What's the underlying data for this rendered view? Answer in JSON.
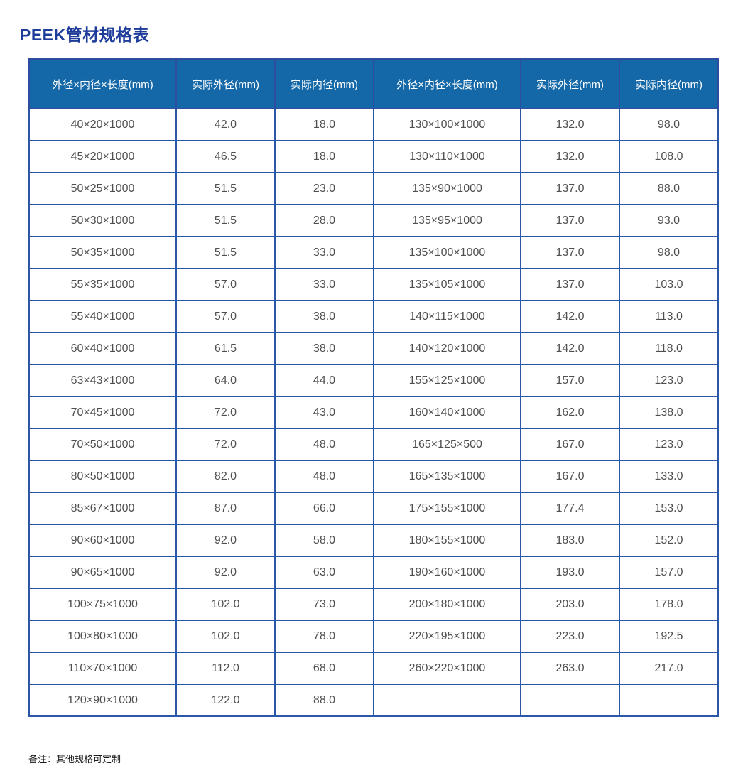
{
  "title": "PEEK管材规格表",
  "note": "备注：其他规格可定制",
  "colors": {
    "title_text": "#1e3c99",
    "header_background": "#1468a8",
    "header_text": "#ffffff",
    "grid_border": "#2b57a8",
    "cell_text": "#4f4f4f"
  },
  "table": {
    "headers": [
      "外径×内径×长度(mm)",
      "实际外径(mm)",
      "实际内径(mm)",
      "外径×内径×长度(mm)",
      "实际外径(mm)",
      "实际内径(mm)"
    ],
    "rows": [
      [
        "40×20×1000",
        "42.0",
        "18.0",
        "130×100×1000",
        "132.0",
        "98.0"
      ],
      [
        "45×20×1000",
        "46.5",
        "18.0",
        "130×110×1000",
        "132.0",
        "108.0"
      ],
      [
        "50×25×1000",
        "51.5",
        "23.0",
        "135×90×1000",
        "137.0",
        "88.0"
      ],
      [
        "50×30×1000",
        "51.5",
        "28.0",
        "135×95×1000",
        "137.0",
        "93.0"
      ],
      [
        "50×35×1000",
        "51.5",
        "33.0",
        "135×100×1000",
        "137.0",
        "98.0"
      ],
      [
        "55×35×1000",
        "57.0",
        "33.0",
        "135×105×1000",
        "137.0",
        "103.0"
      ],
      [
        "55×40×1000",
        "57.0",
        "38.0",
        "140×115×1000",
        "142.0",
        "113.0"
      ],
      [
        "60×40×1000",
        "61.5",
        "38.0",
        "140×120×1000",
        "142.0",
        "118.0"
      ],
      [
        "63×43×1000",
        "64.0",
        "44.0",
        "155×125×1000",
        "157.0",
        "123.0"
      ],
      [
        "70×45×1000",
        "72.0",
        "43.0",
        "160×140×1000",
        "162.0",
        "138.0"
      ],
      [
        "70×50×1000",
        "72.0",
        "48.0",
        "165×125×500",
        "167.0",
        "123.0"
      ],
      [
        "80×50×1000",
        "82.0",
        "48.0",
        "165×135×1000",
        "167.0",
        "133.0"
      ],
      [
        "85×67×1000",
        "87.0",
        "66.0",
        "175×155×1000",
        "177.4",
        "153.0"
      ],
      [
        "90×60×1000",
        "92.0",
        "58.0",
        "180×155×1000",
        "183.0",
        "152.0"
      ],
      [
        "90×65×1000",
        "92.0",
        "63.0",
        "190×160×1000",
        "193.0",
        "157.0"
      ],
      [
        "100×75×1000",
        "102.0",
        "73.0",
        "200×180×1000",
        "203.0",
        "178.0"
      ],
      [
        "100×80×1000",
        "102.0",
        "78.0",
        "220×195×1000",
        "223.0",
        "192.5"
      ],
      [
        "110×70×1000",
        "112.0",
        "68.0",
        "260×220×1000",
        "263.0",
        "217.0"
      ],
      [
        "120×90×1000",
        "122.0",
        "88.0",
        "",
        "",
        ""
      ]
    ]
  }
}
